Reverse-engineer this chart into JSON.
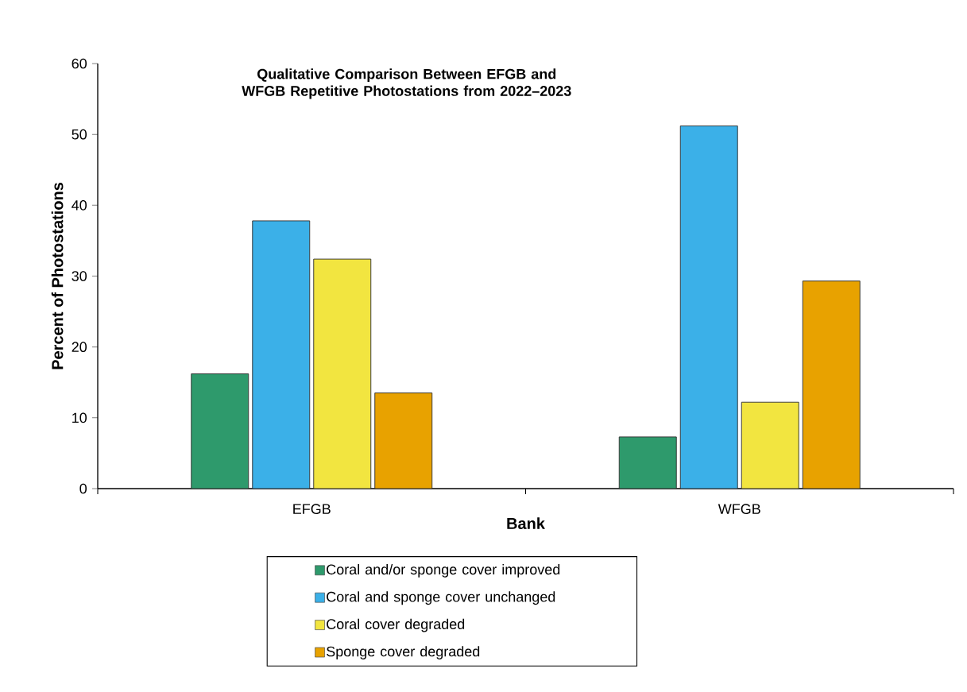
{
  "chart_data": {
    "type": "bar",
    "title": "Qualitative Comparison Between EFGB and WFGB Repetitive Photostations from 2022–2023",
    "xlabel": "Bank",
    "ylabel": "Percent of Photostations",
    "categories": [
      "EFGB",
      "WFGB"
    ],
    "series": [
      {
        "name": "Coral and/or sponge cover improved",
        "color": "#2e9a6c",
        "values": [
          16.2,
          7.3
        ]
      },
      {
        "name": "Coral and sponge cover unchanged",
        "color": "#3bb0e8",
        "values": [
          37.8,
          51.2
        ]
      },
      {
        "name": "Coral cover degraded",
        "color": "#f2e540",
        "values": [
          32.4,
          12.2
        ]
      },
      {
        "name": "Sponge cover degraded",
        "color": "#e8a200",
        "values": [
          13.5,
          29.3
        ]
      }
    ],
    "ylim": [
      0,
      60
    ],
    "yticks": [
      0,
      10,
      20,
      30,
      40,
      50,
      60
    ],
    "grid": false,
    "legend": "bottom"
  }
}
